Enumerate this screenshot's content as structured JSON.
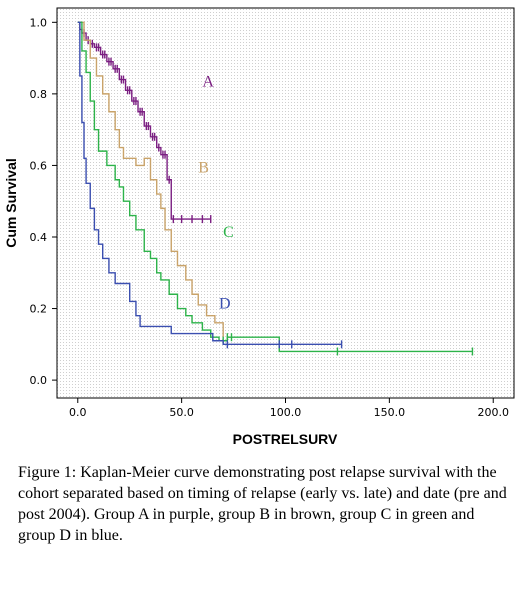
{
  "chart_data": {
    "type": "line",
    "xlabel": "POSTRELSURV",
    "ylabel": "Cum Survival",
    "xlim": [
      -10,
      210
    ],
    "ylim": [
      -0.05,
      1.04
    ],
    "x_ticks": [
      "0.0",
      "50.0",
      "100.0",
      "150.0",
      "200.0"
    ],
    "y_ticks": [
      "0.0",
      "0.2",
      "0.4",
      "0.6",
      "0.8",
      "1.0"
    ],
    "grid": "dotted-gray",
    "legend": "none",
    "series": [
      {
        "name": "A",
        "color": "#7b1f82",
        "step_points": [
          [
            0,
            1.0
          ],
          [
            1,
            0.98
          ],
          [
            2,
            0.97
          ],
          [
            4,
            0.95
          ],
          [
            6,
            0.94
          ],
          [
            8,
            0.93
          ],
          [
            11,
            0.91
          ],
          [
            14,
            0.89
          ],
          [
            17,
            0.87
          ],
          [
            20,
            0.84
          ],
          [
            23,
            0.81
          ],
          [
            26,
            0.78
          ],
          [
            29,
            0.75
          ],
          [
            32,
            0.71
          ],
          [
            35,
            0.68
          ],
          [
            38,
            0.65
          ],
          [
            40,
            0.63
          ],
          [
            43,
            0.56
          ],
          [
            45,
            0.45
          ],
          [
            64,
            0.45
          ]
        ],
        "censor_x": [
          3,
          5,
          7,
          9,
          10,
          12,
          13,
          15,
          16,
          18,
          19,
          21,
          22,
          24,
          25,
          27,
          28,
          30,
          31,
          33,
          34,
          36,
          37,
          39,
          41,
          42,
          44,
          46,
          50,
          55,
          60,
          64
        ]
      },
      {
        "name": "B",
        "color": "#c9a36a",
        "step_points": [
          [
            0,
            1.0
          ],
          [
            3,
            0.95
          ],
          [
            6,
            0.9
          ],
          [
            9,
            0.85
          ],
          [
            12,
            0.8
          ],
          [
            15,
            0.75
          ],
          [
            18,
            0.7
          ],
          [
            20,
            0.65
          ],
          [
            22,
            0.62
          ],
          [
            25,
            0.62
          ],
          [
            28,
            0.6
          ],
          [
            32,
            0.62
          ],
          [
            35,
            0.56
          ],
          [
            38,
            0.52
          ],
          [
            40,
            0.48
          ],
          [
            42,
            0.42
          ],
          [
            45,
            0.36
          ],
          [
            48,
            0.32
          ],
          [
            52,
            0.28
          ],
          [
            55,
            0.24
          ],
          [
            58,
            0.21
          ],
          [
            62,
            0.18
          ],
          [
            66,
            0.16
          ],
          [
            70,
            0.12
          ]
        ],
        "censor_x": []
      },
      {
        "name": "C",
        "color": "#2db34a",
        "step_points": [
          [
            0,
            1.0
          ],
          [
            2,
            0.92
          ],
          [
            4,
            0.86
          ],
          [
            6,
            0.78
          ],
          [
            8,
            0.7
          ],
          [
            10,
            0.64
          ],
          [
            14,
            0.6
          ],
          [
            18,
            0.56
          ],
          [
            20,
            0.54
          ],
          [
            22,
            0.5
          ],
          [
            25,
            0.46
          ],
          [
            28,
            0.42
          ],
          [
            32,
            0.36
          ],
          [
            35,
            0.34
          ],
          [
            38,
            0.3
          ],
          [
            40,
            0.28
          ],
          [
            44,
            0.24
          ],
          [
            48,
            0.2
          ],
          [
            52,
            0.18
          ],
          [
            55,
            0.16
          ],
          [
            60,
            0.14
          ],
          [
            64,
            0.12
          ],
          [
            68,
            0.11
          ],
          [
            72,
            0.12
          ],
          [
            75,
            0.12
          ],
          [
            97,
            0.08
          ],
          [
            190,
            0.08
          ]
        ],
        "censor_x": [
          70,
          72,
          74,
          125,
          190
        ]
      },
      {
        "name": "D",
        "color": "#3b4fb0",
        "step_points": [
          [
            0,
            1.0
          ],
          [
            1,
            0.85
          ],
          [
            2,
            0.72
          ],
          [
            3,
            0.62
          ],
          [
            4,
            0.55
          ],
          [
            6,
            0.48
          ],
          [
            8,
            0.42
          ],
          [
            10,
            0.38
          ],
          [
            12,
            0.34
          ],
          [
            15,
            0.3
          ],
          [
            18,
            0.27
          ],
          [
            22,
            0.27
          ],
          [
            25,
            0.22
          ],
          [
            28,
            0.18
          ],
          [
            30,
            0.15
          ],
          [
            40,
            0.15
          ],
          [
            45,
            0.13
          ],
          [
            65,
            0.11
          ],
          [
            70,
            0.1
          ],
          [
            127,
            0.1
          ]
        ],
        "censor_x": [
          72,
          97,
          103,
          127
        ]
      }
    ]
  },
  "caption": "Figure 1: Kaplan-Meier curve demonstrating post relapse survival with the cohort separated based on timing of relapse (early vs. late) and date (pre and post 2004). Group A in purple, group B in brown, group C in green and group D in blue."
}
